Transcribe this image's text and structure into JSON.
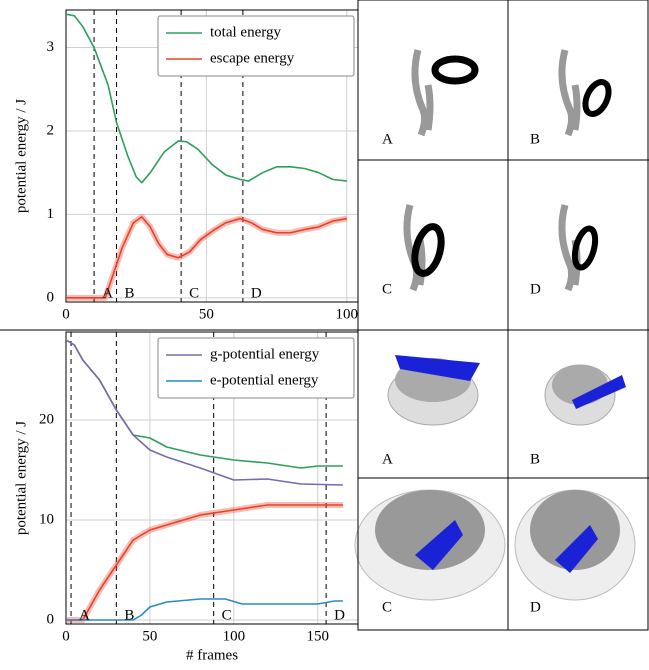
{
  "chart_data": [
    {
      "type": "line",
      "ylabel": "potential energy / J",
      "xlim": [
        0,
        104
      ],
      "xticks": [
        0,
        50,
        100
      ],
      "ylim": [
        -0.05,
        3.45
      ],
      "yticks": [
        0,
        1,
        2,
        3
      ],
      "grid": true,
      "legend": "upper right",
      "markers": [
        {
          "x": 10,
          "label": "A"
        },
        {
          "x": 18,
          "label": "B"
        },
        {
          "x": 41,
          "label": "C"
        },
        {
          "x": 63,
          "label": "D"
        }
      ],
      "series": [
        {
          "name": "total energy",
          "color": "#2ca05a",
          "x": [
            0,
            3,
            6,
            10,
            15,
            18,
            22,
            25,
            27,
            30,
            35,
            40,
            43,
            47,
            52,
            57,
            62,
            65,
            70,
            75,
            80,
            85,
            90,
            95,
            100
          ],
          "values": [
            3.4,
            3.38,
            3.25,
            3.0,
            2.55,
            2.1,
            1.7,
            1.45,
            1.38,
            1.5,
            1.75,
            1.88,
            1.87,
            1.78,
            1.6,
            1.47,
            1.42,
            1.4,
            1.5,
            1.57,
            1.57,
            1.55,
            1.5,
            1.42,
            1.4
          ]
        },
        {
          "name": "escape energy",
          "color": "#e8432a",
          "band": true,
          "x": [
            0,
            14,
            17,
            20,
            24,
            27,
            30,
            33,
            36,
            40,
            44,
            48,
            53,
            57,
            62,
            66,
            70,
            75,
            80,
            85,
            90,
            95,
            100
          ],
          "values": [
            0,
            0,
            0.3,
            0.6,
            0.9,
            0.97,
            0.85,
            0.65,
            0.52,
            0.48,
            0.55,
            0.7,
            0.82,
            0.9,
            0.95,
            0.9,
            0.82,
            0.78,
            0.78,
            0.82,
            0.85,
            0.92,
            0.95
          ]
        }
      ]
    },
    {
      "type": "line",
      "ylabel": "potential energy / J",
      "xlabel": "# frames",
      "xlim": [
        0,
        174
      ],
      "xticks": [
        0,
        50,
        100,
        150
      ],
      "ylim": [
        -0.4,
        28.8
      ],
      "yticks": [
        0,
        10,
        20
      ],
      "grid": true,
      "legend": "upper right",
      "markers": [
        {
          "x": 3,
          "label": "A"
        },
        {
          "x": 30,
          "label": "B"
        },
        {
          "x": 88,
          "label": "C"
        },
        {
          "x": 155,
          "label": "D"
        }
      ],
      "series": [
        {
          "color": "#2ca05a",
          "x": [
            0,
            5,
            10,
            20,
            30,
            40,
            50,
            60,
            80,
            100,
            120,
            140,
            150,
            165
          ],
          "values": [
            28,
            27.5,
            26,
            24,
            21,
            18.5,
            18.2,
            17.3,
            16.5,
            16,
            15.7,
            15.2,
            15.4,
            15.4
          ]
        },
        {
          "name": "g-potential energy",
          "color": "#7a68b0",
          "x": [
            0,
            5,
            10,
            20,
            30,
            40,
            50,
            60,
            80,
            100,
            120,
            140,
            165
          ],
          "values": [
            28,
            27.5,
            26,
            24,
            21,
            18.5,
            17,
            16.3,
            15.2,
            14,
            14.1,
            13.6,
            13.5
          ]
        },
        {
          "color": "#e8432a",
          "band": true,
          "x": [
            0,
            10,
            15,
            20,
            30,
            40,
            50,
            60,
            80,
            100,
            120,
            140,
            165
          ],
          "values": [
            0,
            0,
            1.5,
            3,
            5.5,
            8,
            9,
            9.5,
            10.5,
            11,
            11.5,
            11.5,
            11.5
          ]
        },
        {
          "name": "e-potential energy",
          "color": "#2a8cc0",
          "x": [
            0,
            40,
            45,
            50,
            60,
            80,
            95,
            105,
            130,
            150,
            160,
            165
          ],
          "values": [
            0,
            0,
            0.5,
            1.3,
            1.8,
            2.1,
            2.1,
            1.6,
            1.6,
            1.6,
            1.9,
            1.9
          ]
        }
      ]
    }
  ],
  "image_panels": {
    "top": [
      "A",
      "B",
      "C",
      "D"
    ],
    "bottom": [
      "A",
      "B",
      "C",
      "D"
    ]
  }
}
